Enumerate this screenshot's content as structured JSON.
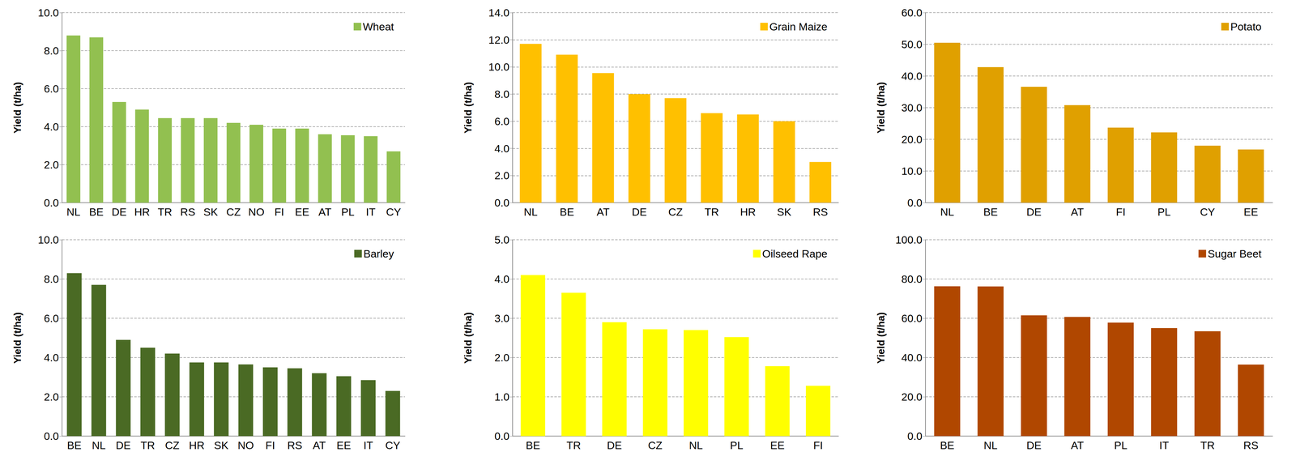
{
  "chart_data": [
    {
      "type": "bar",
      "y_label": "Yield (t/ha)",
      "grid": true,
      "legend": "upper right",
      "categories": [
        "NL",
        "BE",
        "DE",
        "HR",
        "TR",
        "RS",
        "SK",
        "CZ",
        "NO",
        "FI",
        "EE",
        "AT",
        "PL",
        "IT",
        "CY"
      ],
      "series": [
        {
          "name": "Wheat",
          "color": "#92c050",
          "values": [
            8.8,
            8.7,
            5.3,
            4.9,
            4.45,
            4.45,
            4.45,
            4.2,
            4.1,
            3.9,
            3.9,
            3.6,
            3.55,
            3.5,
            2.7
          ]
        }
      ],
      "ylim": [
        0,
        10
      ],
      "yticks": [
        {
          "value": 0,
          "label": "0.0"
        },
        {
          "value": 2,
          "label": "2.0"
        },
        {
          "value": 4,
          "label": "4.0"
        },
        {
          "value": 6,
          "label": "6.0"
        },
        {
          "value": 8,
          "label": "8.0"
        },
        {
          "value": 10,
          "label": "10.0"
        }
      ]
    },
    {
      "type": "bar",
      "y_label": "Yield (t/ha)",
      "grid": true,
      "legend": "upper right",
      "categories": [
        "NL",
        "BE",
        "AT",
        "DE",
        "CZ",
        "TR",
        "HR",
        "SK",
        "RS"
      ],
      "series": [
        {
          "name": "Grain Maize",
          "color": "#ffc000",
          "values": [
            11.7,
            10.9,
            9.55,
            8.0,
            7.7,
            6.6,
            6.5,
            6.0,
            3.0
          ]
        }
      ],
      "ylim": [
        0,
        14
      ],
      "yticks": [
        {
          "value": 0,
          "label": "0.0"
        },
        {
          "value": 2,
          "label": "2.0"
        },
        {
          "value": 4,
          "label": "4.0"
        },
        {
          "value": 6,
          "label": "6.0"
        },
        {
          "value": 8,
          "label": "8.0"
        },
        {
          "value": 10,
          "label": "10.0"
        },
        {
          "value": 12,
          "label": "12.0"
        },
        {
          "value": 14,
          "label": "14.0"
        }
      ]
    },
    {
      "type": "bar",
      "y_label": "Yield (t/ha)",
      "grid": true,
      "legend": "upper right",
      "categories": [
        "NL",
        "BE",
        "DE",
        "AT",
        "FI",
        "PL",
        "CY",
        "EE"
      ],
      "series": [
        {
          "name": "Potato",
          "color": "#e0a000",
          "values": [
            50.5,
            42.8,
            36.6,
            30.8,
            23.7,
            22.2,
            18.0,
            16.8
          ]
        }
      ],
      "ylim": [
        0,
        60
      ],
      "yticks": [
        {
          "value": 0,
          "label": "0.0"
        },
        {
          "value": 10,
          "label": "10.0"
        },
        {
          "value": 20,
          "label": "20.0"
        },
        {
          "value": 30,
          "label": "30.0"
        },
        {
          "value": 40,
          "label": "40.0"
        },
        {
          "value": 50,
          "label": "50.0"
        },
        {
          "value": 60,
          "label": "60.0"
        }
      ]
    },
    {
      "type": "bar",
      "y_label": "Yield (t/ha)",
      "grid": true,
      "legend": "upper right",
      "categories": [
        "BE",
        "NL",
        "DE",
        "TR",
        "CZ",
        "HR",
        "SK",
        "NO",
        "FI",
        "RS",
        "AT",
        "EE",
        "IT",
        "CY"
      ],
      "series": [
        {
          "name": "Barley",
          "color": "#4a6a24",
          "values": [
            8.3,
            7.7,
            4.9,
            4.5,
            4.2,
            3.75,
            3.75,
            3.65,
            3.5,
            3.45,
            3.2,
            3.05,
            2.85,
            2.3
          ]
        }
      ],
      "ylim": [
        0,
        10
      ],
      "yticks": [
        {
          "value": 0,
          "label": "0.0"
        },
        {
          "value": 2,
          "label": "2.0"
        },
        {
          "value": 4,
          "label": "4.0"
        },
        {
          "value": 6,
          "label": "6.0"
        },
        {
          "value": 8,
          "label": "8.0"
        },
        {
          "value": 10,
          "label": "10.0"
        }
      ]
    },
    {
      "type": "bar",
      "y_label": "Yield (t/ha)",
      "grid": true,
      "legend": "upper right",
      "categories": [
        "BE",
        "TR",
        "DE",
        "CZ",
        "NL",
        "PL",
        "EE",
        "FI"
      ],
      "series": [
        {
          "name": "Oilseed Rape",
          "color": "#ffff00",
          "values": [
            4.1,
            3.65,
            2.9,
            2.72,
            2.7,
            2.52,
            1.78,
            1.28
          ]
        }
      ],
      "ylim": [
        0,
        5
      ],
      "yticks": [
        {
          "value": 0,
          "label": "0.0"
        },
        {
          "value": 1,
          "label": "1.0"
        },
        {
          "value": 2,
          "label": "2.0"
        },
        {
          "value": 3,
          "label": "3.0"
        },
        {
          "value": 4,
          "label": "4.0"
        },
        {
          "value": 5,
          "label": "5.0"
        }
      ]
    },
    {
      "type": "bar",
      "y_label": "Yield (t/ha)",
      "grid": true,
      "legend": "upper right",
      "categories": [
        "BE",
        "NL",
        "DE",
        "AT",
        "PL",
        "IT",
        "TR",
        "RS"
      ],
      "series": [
        {
          "name": "Sugar Beet",
          "color": "#b04700",
          "values": [
            76.3,
            76.2,
            61.5,
            60.7,
            57.8,
            55.0,
            53.4,
            36.4
          ]
        }
      ],
      "ylim": [
        0,
        100
      ],
      "yticks": [
        {
          "value": 0,
          "label": "0.0"
        },
        {
          "value": 20,
          "label": "20.0"
        },
        {
          "value": 40,
          "label": "40.0"
        },
        {
          "value": 60,
          "label": "60.0"
        },
        {
          "value": 80,
          "label": "80.0"
        },
        {
          "value": 100,
          "label": "100.0"
        }
      ]
    }
  ]
}
